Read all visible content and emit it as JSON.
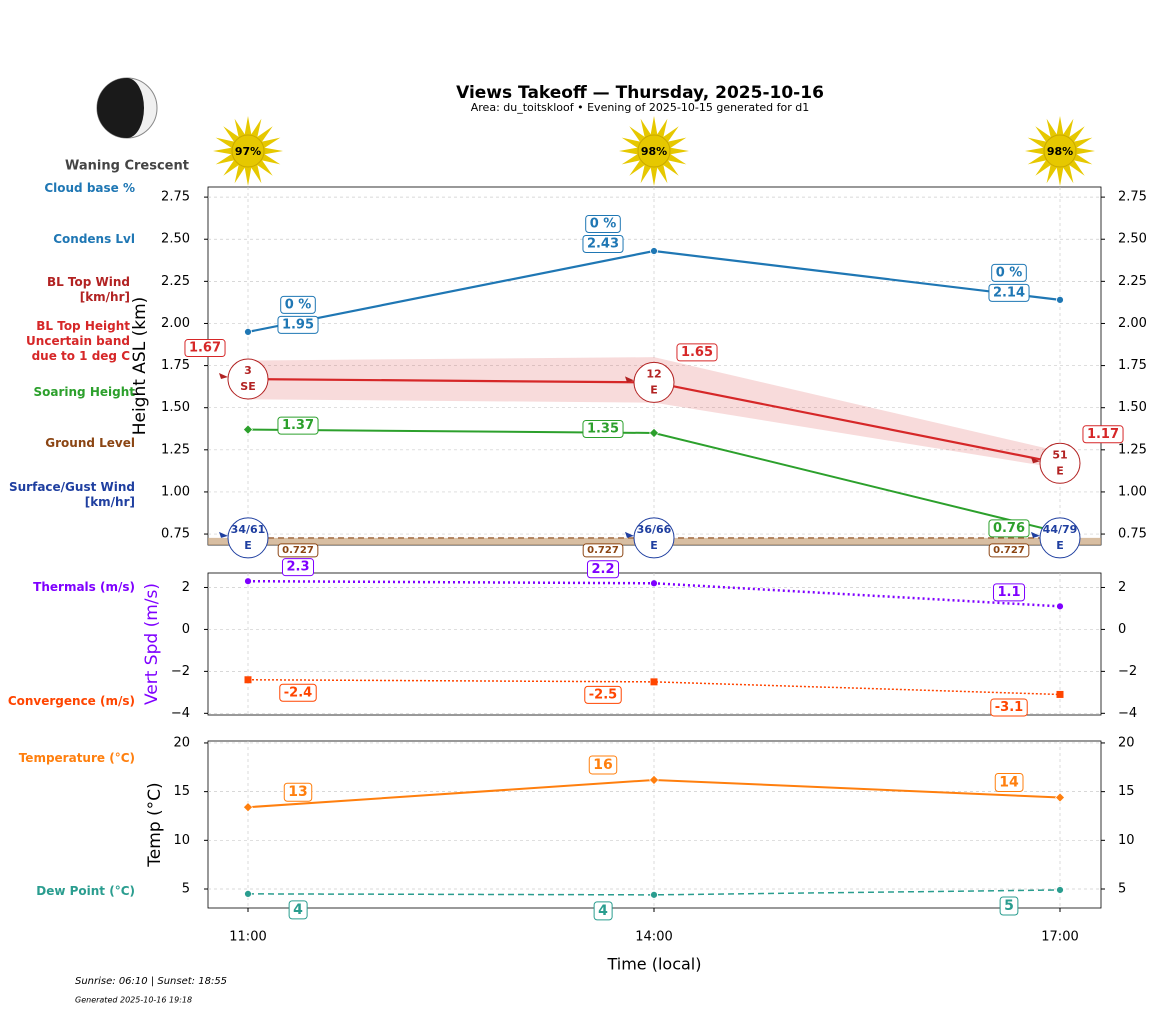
{
  "header": {
    "title": "Views Takeoff — Thursday, 2025-10-16",
    "subtitle": "Area: du_toitskloof • Evening of 2025-10-15 generated for d1",
    "moon_phase": "Waning Crescent",
    "sun": {
      "values": [
        97,
        98,
        98
      ],
      "value_labels": [
        "97%",
        "98%",
        "98%"
      ],
      "color": "#e6c800"
    }
  },
  "footer": {
    "sun_times": "Sunrise: 06:10 | Sunset: 18:55",
    "generated": "Generated 2025-10-16 19:18"
  },
  "chart_data": [
    {
      "type": "line",
      "ylabel": "Height ASL (km)",
      "ylim": [
        0.685,
        2.81
      ],
      "yticks": [
        0.75,
        {
          "value": 1,
          "label": "1.00"
        },
        1.25,
        {
          "value": 1.5,
          "label": "1.50"
        },
        1.75,
        {
          "value": 2,
          "label": "2.00"
        },
        2.25,
        {
          "value": 2.5,
          "label": "2.50"
        },
        2.75
      ],
      "grid": true,
      "series": [
        {
          "name": "Cloud base %",
          "color": "#1f77b4",
          "values": [
            0,
            0,
            0
          ],
          "value_labels": [
            "0 %",
            "0 %",
            "0 %"
          ]
        },
        {
          "name": "Condens Lvl",
          "color": "#1f77b4",
          "values": [
            1.95,
            2.43,
            2.14
          ],
          "marker": "circle"
        },
        {
          "name": "BL Top Wind [km/hr]",
          "color": "#b22222",
          "values": [
            3,
            12,
            51
          ],
          "directions": [
            "SE",
            "E",
            "E"
          ]
        },
        {
          "name": "BL Top Height Uncertain band due to 1 deg C",
          "color": "#d62728",
          "values": [
            1.67,
            1.65,
            1.17
          ],
          "lower": [
            1.55,
            1.53,
            1.14
          ],
          "upper": [
            1.78,
            1.8,
            1.24
          ]
        },
        {
          "name": "Soaring Height",
          "color": "#2ca02c",
          "values": [
            1.37,
            1.35,
            0.76
          ],
          "marker": "diamond"
        },
        {
          "name": "Ground Level",
          "color": "#8b4513",
          "values": [
            0.727,
            0.727,
            0.727
          ],
          "dash": "dashed",
          "fill": "#c8a27a"
        },
        {
          "name": "Surface/Gust Wind [km/hr]",
          "color": "#1f3fa0",
          "values": [
            34,
            36,
            44
          ],
          "gusts": [
            61,
            66,
            79
          ],
          "value_labels": [
            "34/61",
            "36/66",
            "44/79"
          ],
          "directions": [
            "E",
            "E",
            "E"
          ]
        }
      ]
    },
    {
      "type": "line",
      "ylabel": "Vert Spd (m/s)",
      "ylabel_color": "#7f00ff",
      "ylim": [
        -4.08,
        2.69
      ],
      "yticks": [
        {
          "value": -4,
          "label": "−4"
        },
        {
          "value": -2,
          "label": "−2"
        },
        0,
        2
      ],
      "grid": true,
      "series": [
        {
          "name": "Thermals (m/s)",
          "color": "#7f00ff",
          "values": [
            2.3,
            2.2,
            1.1
          ],
          "dash": "dotted",
          "marker": "circle"
        },
        {
          "name": "Convergence (m/s)",
          "color": "#ff4500",
          "values": [
            -2.4,
            -2.5,
            -3.1
          ],
          "dash": "dotted",
          "marker": "square"
        }
      ]
    },
    {
      "type": "line",
      "xlabel": "Time (local)",
      "ylabel": "Temp (°C)",
      "categories": [
        "11:00",
        "14:00",
        "17:00"
      ],
      "ylim": [
        3.05,
        20.2
      ],
      "yticks": [
        5,
        10,
        15,
        20
      ],
      "grid": true,
      "series": [
        {
          "name": "Temperature (°C)",
          "color": "#ff7f0e",
          "values": [
            13.4,
            16.2,
            14.4
          ],
          "value_labels": [
            "13",
            "16",
            "14"
          ],
          "marker": "diamond"
        },
        {
          "name": "Dew Point (°C)",
          "color": "#2a9d8f",
          "values": [
            4.5,
            4.4,
            4.9
          ],
          "value_labels": [
            "4",
            "4",
            "5"
          ],
          "dash": "dashed",
          "marker": "circle"
        }
      ]
    }
  ]
}
